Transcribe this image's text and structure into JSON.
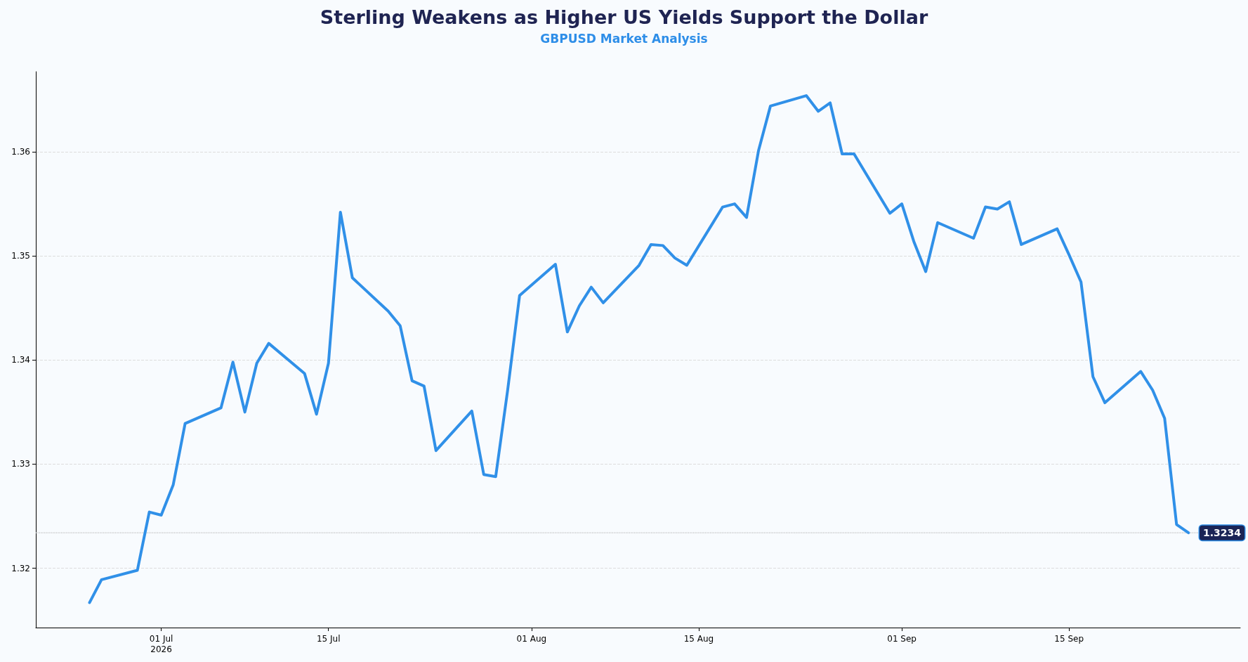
{
  "chart_data": {
    "type": "line",
    "title": "Sterling Weakens as Higher US Yields Support the Dollar",
    "subtitle": "GBPUSD Market Analysis",
    "x": [
      "2026-06-25",
      "2026-06-26",
      "2026-06-29",
      "2026-06-30",
      "2026-07-01",
      "2026-07-02",
      "2026-07-03",
      "2026-07-06",
      "2026-07-07",
      "2026-07-08",
      "2026-07-09",
      "2026-07-10",
      "2026-07-13",
      "2026-07-14",
      "2026-07-15",
      "2026-07-16",
      "2026-07-17",
      "2026-07-20",
      "2026-07-21",
      "2026-07-22",
      "2026-07-23",
      "2026-07-24",
      "2026-07-27",
      "2026-07-28",
      "2026-07-29",
      "2026-07-30",
      "2026-07-31",
      "2026-08-03",
      "2026-08-04",
      "2026-08-05",
      "2026-08-06",
      "2026-08-07",
      "2026-08-10",
      "2026-08-11",
      "2026-08-12",
      "2026-08-13",
      "2026-08-14",
      "2026-08-17",
      "2026-08-18",
      "2026-08-19",
      "2026-08-20",
      "2026-08-21",
      "2026-08-24",
      "2026-08-25",
      "2026-08-26",
      "2026-08-27",
      "2026-08-28",
      "2026-08-31",
      "2026-09-01",
      "2026-09-02",
      "2026-09-03",
      "2026-09-04",
      "2026-09-07",
      "2026-09-08",
      "2026-09-09",
      "2026-09-10",
      "2026-09-11",
      "2026-09-14",
      "2026-09-15",
      "2026-09-16",
      "2026-09-17",
      "2026-09-18",
      "2026-09-21",
      "2026-09-22",
      "2026-09-23",
      "2026-09-24",
      "2026-09-25"
    ],
    "series": [
      {
        "color": "#3090e8",
        "values": [
          1.3167,
          1.3189,
          1.3198,
          1.3254,
          1.3251,
          1.328,
          1.3339,
          1.3354,
          1.3398,
          1.335,
          1.3397,
          1.3416,
          1.3387,
          1.3348,
          1.3397,
          1.3542,
          1.3479,
          1.3447,
          1.3433,
          1.338,
          1.3375,
          1.3313,
          1.3351,
          1.329,
          1.3288,
          1.3371,
          1.3462,
          1.3492,
          1.3427,
          1.3452,
          1.347,
          1.3455,
          1.3491,
          1.3511,
          1.351,
          1.3498,
          1.3491,
          1.3547,
          1.355,
          1.3537,
          1.3601,
          1.3644,
          1.3654,
          1.3639,
          1.3647,
          1.3598,
          1.3598,
          1.3541,
          1.355,
          1.3514,
          1.3485,
          1.3532,
          1.3517,
          1.3547,
          1.3545,
          1.3552,
          1.3511,
          1.3526,
          1.3501,
          1.3475,
          1.3384,
          1.3359,
          1.3389,
          1.3371,
          1.3344,
          1.3242,
          1.3234
        ]
      }
    ],
    "xlim": [
      "2026-06-20T12:00",
      "2026-09-29T08:00"
    ],
    "xticks": [
      {
        "value": "2026-07-01",
        "label": "01 Jul\n2026"
      },
      {
        "value": "2026-07-15",
        "label": "15 Jul"
      },
      {
        "value": "2026-08-01",
        "label": "01 Aug"
      },
      {
        "value": "2026-08-15",
        "label": "15 Aug"
      },
      {
        "value": "2026-09-01",
        "label": "01 Sep"
      },
      {
        "value": "2026-09-15",
        "label": "15 Sep"
      }
    ],
    "ylim": [
      1.3143,
      1.3677
    ],
    "yticks": [
      1.32,
      1.33,
      1.34,
      1.35,
      1.36
    ],
    "grid": "y",
    "marker": "none",
    "line_style": "solid",
    "ref_lines": [
      {
        "axis": "y",
        "value": 1.3234,
        "label": "1.3234",
        "color": "#bbbbbb",
        "line_style": "dotted"
      }
    ]
  }
}
